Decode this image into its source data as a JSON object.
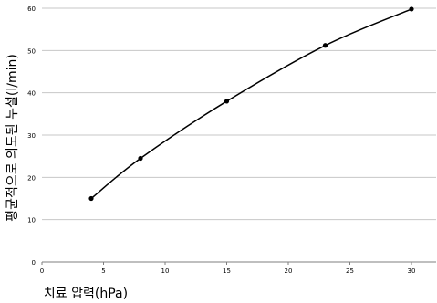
{
  "chart_data": {
    "type": "line",
    "title": "",
    "xlabel": "치료 압력(hPa)",
    "ylabel": "평균적으로 의도된 누설(l/min)",
    "xlim": [
      0,
      32
    ],
    "ylim": [
      0,
      60
    ],
    "xticks": [
      0,
      5,
      10,
      15,
      20,
      25,
      30
    ],
    "yticks": [
      0,
      10,
      20,
      30,
      40,
      50,
      60
    ],
    "grid": "horizontal",
    "legend": "none",
    "series": [
      {
        "x": [
          4,
          8,
          15,
          23,
          30
        ],
        "y": [
          15,
          24.5,
          38,
          51.2,
          59.8
        ],
        "color": "#000000",
        "marker": "circle"
      }
    ]
  }
}
